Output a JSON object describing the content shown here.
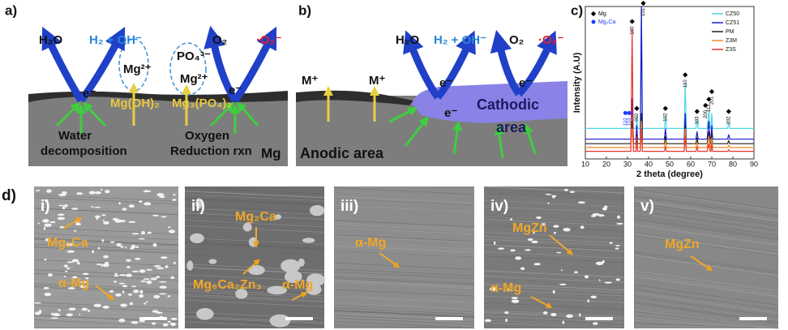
{
  "panel_a": {
    "texts": [
      "a)",
      "H₂O",
      "H₂ + OH⁻",
      "Mg²⁺",
      "PO₄³⁻",
      "Mg²⁺",
      "O₂",
      "·O₂⁻",
      "e⁻",
      "e⁻",
      "Mg(OH)₂",
      "Mg₃(PO₄)₂",
      "Water",
      "decomposition",
      "Oxygen",
      "Reduction rxn",
      "Mg"
    ]
  },
  "panel_b": {
    "texts": [
      "b)",
      "M⁺",
      "M⁺",
      "H₂O",
      "H₂ + OH⁻",
      "O₂",
      "·O₂⁻",
      "e⁻",
      "e⁻",
      "e⁻",
      "Cathodic",
      "area",
      "Anodic area"
    ]
  },
  "panel_c_label": "c)",
  "chart_data": {
    "type": "line",
    "x_label": "2 theta (degree)",
    "y_label": "Intensity (A.U)",
    "x": [
      10,
      31.6,
      32.2,
      32.8,
      34.0,
      34.4,
      34.8,
      36.1,
      36.6,
      37.1,
      47.5,
      48.0,
      48.5,
      56.9,
      57.4,
      57.9,
      62.5,
      63.0,
      63.5,
      67.8,
      68.6,
      69.2,
      69.6,
      70.0,
      70.4,
      77.5,
      78.0,
      78.5,
      90
    ],
    "xlim": [
      10,
      90
    ],
    "xticks": [
      10,
      20,
      30,
      40,
      50,
      60,
      70,
      80,
      90
    ],
    "ylim": [
      0,
      100
    ],
    "series": [
      {
        "name": "CZ50",
        "color": "#4dd9e6",
        "values": [
          20,
          20,
          35,
          20,
          20,
          28,
          20,
          20,
          98,
          20,
          20,
          28,
          20,
          20,
          50,
          20,
          20,
          26,
          20,
          20,
          32,
          20,
          20,
          30,
          20,
          20,
          24,
          20,
          20
        ]
      },
      {
        "name": "CZ51",
        "color": "#1a1acc",
        "values": [
          13,
          13,
          40,
          13,
          13,
          22,
          13,
          13,
          100,
          13,
          13,
          20,
          13,
          13,
          30,
          13,
          13,
          18,
          13,
          13,
          25,
          13,
          13,
          22,
          13,
          13,
          16,
          13,
          13
        ]
      },
      {
        "name": "PM",
        "color": "#222222",
        "values": [
          10,
          10,
          25,
          10,
          10,
          16,
          10,
          10,
          30,
          10,
          10,
          15,
          10,
          10,
          22,
          10,
          10,
          14,
          10,
          10,
          18,
          10,
          10,
          17,
          10,
          10,
          12,
          10,
          10
        ]
      },
      {
        "name": "Z3M",
        "color": "#f28c28",
        "values": [
          7.5,
          7.5,
          20,
          7.5,
          7.5,
          13,
          7.5,
          7.5,
          25,
          7.5,
          7.5,
          12,
          7.5,
          7.5,
          20,
          7.5,
          7.5,
          11,
          7.5,
          7.5,
          15,
          7.5,
          7.5,
          14,
          7.5,
          7.5,
          9,
          7.5,
          7.5
        ]
      },
      {
        "name": "Z3S",
        "color": "#e8332c",
        "values": [
          5,
          5,
          85,
          5,
          5,
          15,
          5,
          5,
          20,
          5,
          5,
          8,
          5,
          5,
          15,
          5,
          5,
          8,
          5,
          5,
          10,
          5,
          5,
          10,
          5,
          5,
          6,
          5,
          5
        ]
      }
    ],
    "markers": [
      {
        "name": "Mg",
        "color": "#000000",
        "peaks": [
          {
            "label": "100",
            "x": 32.2,
            "y": 88
          },
          {
            "label": "002",
            "x": 34.4,
            "y": 31
          },
          {
            "label": "101",
            "x": 37.5,
            "y": 100
          },
          {
            "label": "102",
            "x": 48.0,
            "y": 31
          },
          {
            "label": "110",
            "x": 57.4,
            "y": 53
          },
          {
            "label": "103",
            "x": 63.0,
            "y": 29
          },
          {
            "label": "200",
            "x": 67.0,
            "y": 33
          },
          {
            "label": "112",
            "x": 68.6,
            "y": 37
          },
          {
            "label": "201",
            "x": 70.0,
            "y": 42
          },
          {
            "label": "202",
            "x": 78.0,
            "y": 29
          }
        ]
      },
      {
        "name": "Mg₂Ca",
        "color": "#1a3cff",
        "peaks": [
          {
            "label": "110",
            "x": 29.0,
            "y": 28
          },
          {
            "label": "103",
            "x": 30.8,
            "y": 28
          }
        ]
      }
    ]
  },
  "panel_d": {
    "label": "d)",
    "images": [
      {
        "numeral": "i)",
        "labels": [
          "Mg₂Ca",
          "α-Mg"
        ]
      },
      {
        "numeral": "ii)",
        "labels": [
          "Mg₂Ca",
          "Mg₆Ca₂Zn₃",
          "α-Mg"
        ]
      },
      {
        "numeral": "iii)",
        "labels": [
          "α-Mg"
        ]
      },
      {
        "numeral": "iv)",
        "labels": [
          "MgZn",
          "α-Mg"
        ]
      },
      {
        "numeral": "v)",
        "labels": [
          "MgZn"
        ]
      }
    ]
  }
}
